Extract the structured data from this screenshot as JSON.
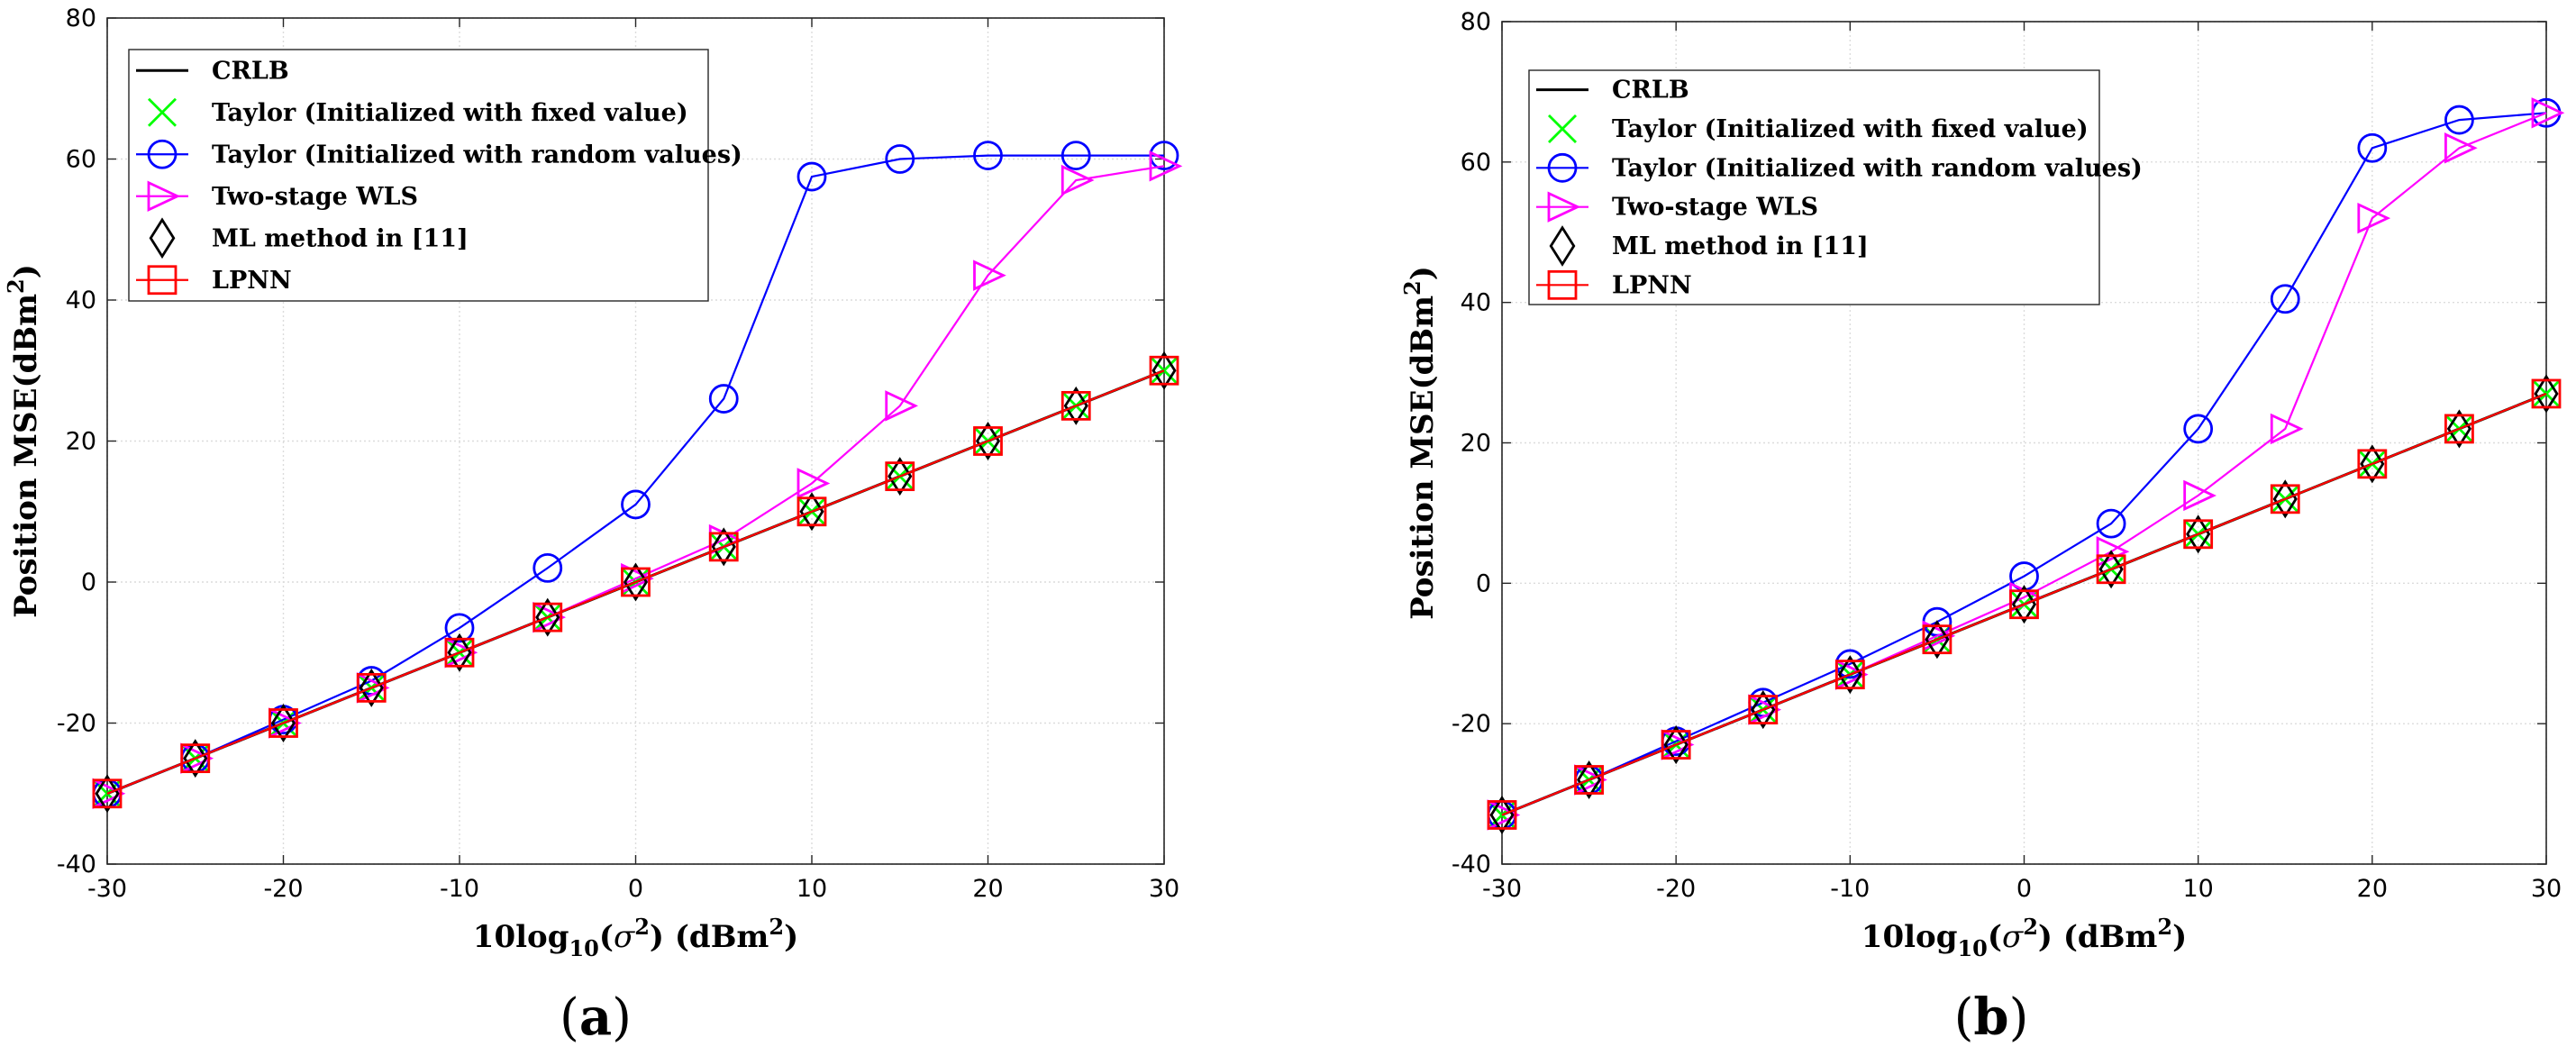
{
  "chart_data": [
    {
      "type": "line",
      "panel_label": "a",
      "xlabel": {
        "pre": "10log",
        "sub": "10",
        "mid": "(",
        "sym": "σ",
        "sup": "2",
        "post": ") (dBm",
        "sup2": "2",
        "end": ")"
      },
      "ylabel": {
        "pre": "Position MSE(dBm",
        "sup": "2",
        "post": ")"
      },
      "xlim": [
        -30,
        30
      ],
      "ylim": [
        -40,
        80
      ],
      "xticks": [
        -30,
        -20,
        -10,
        0,
        10,
        20,
        30
      ],
      "yticks": [
        -40,
        -20,
        0,
        20,
        40,
        60,
        80
      ],
      "grid": true,
      "legend_position": "top-left",
      "x": [
        -30,
        -25,
        -20,
        -15,
        -10,
        -5,
        0,
        5,
        10,
        15,
        20,
        25,
        30
      ],
      "series": [
        {
          "name": "CRLB",
          "color": "#000000",
          "marker": "none",
          "values": [
            -30,
            -25,
            -20,
            -15,
            -10,
            -5,
            0,
            5,
            10,
            15,
            20,
            25,
            30
          ]
        },
        {
          "name": "Taylor (Initialized with fixed value)",
          "color": "#00ff00",
          "marker": "x",
          "values": [
            -30,
            -25,
            -20,
            -15,
            -10,
            -5,
            0,
            5,
            10,
            15,
            20,
            25,
            30
          ]
        },
        {
          "name": "Taylor (Initialized with random values)",
          "color": "#0000ff",
          "marker": "circle",
          "values": [
            -30,
            -25,
            -19.5,
            -14,
            -6.5,
            2,
            11,
            26,
            57.5,
            60,
            60.5,
            60.5,
            60.5
          ]
        },
        {
          "name": "Two-stage WLS",
          "color": "#ff00ff",
          "marker": "triangle-right",
          "values": [
            -30,
            -25,
            -20,
            -15,
            -10,
            -5,
            0.5,
            6,
            14,
            25,
            43.5,
            57,
            59
          ]
        },
        {
          "name": "ML method in [11]",
          "color": "#000000",
          "marker": "diamond",
          "values": [
            -30,
            -25,
            -20,
            -15,
            -10,
            -5,
            0,
            5,
            10,
            15,
            20,
            25,
            30
          ]
        },
        {
          "name": "LPNN",
          "color": "#ff0000",
          "marker": "square",
          "values": [
            -30,
            -25,
            -20,
            -15,
            -10,
            -5,
            0,
            5,
            10,
            15,
            20,
            25,
            30
          ]
        }
      ]
    },
    {
      "type": "line",
      "panel_label": "b",
      "xlabel": {
        "pre": "10log",
        "sub": "10",
        "mid": "(",
        "sym": "σ",
        "sup": "2",
        "post": ") (dBm",
        "sup2": "2",
        "end": ")"
      },
      "ylabel": {
        "pre": "Position MSE(dBm",
        "sup": "2",
        "post": ")"
      },
      "xlim": [
        -30,
        30
      ],
      "ylim": [
        -40,
        80
      ],
      "xticks": [
        -30,
        -20,
        -10,
        0,
        10,
        20,
        30
      ],
      "yticks": [
        -40,
        -20,
        0,
        20,
        40,
        60,
        80
      ],
      "grid": true,
      "legend_position": "top-left",
      "x": [
        -30,
        -25,
        -20,
        -15,
        -10,
        -5,
        0,
        5,
        10,
        15,
        20,
        25,
        30
      ],
      "series": [
        {
          "name": "CRLB",
          "color": "#000000",
          "marker": "none",
          "values": [
            -33,
            -28,
            -23,
            -18,
            -13,
            -8,
            -3,
            2,
            7,
            12,
            17,
            22,
            27
          ]
        },
        {
          "name": "Taylor (Initialized with fixed value)",
          "color": "#00ff00",
          "marker": "x",
          "values": [
            -33,
            -28,
            -23,
            -18,
            -13,
            -8,
            -3,
            2,
            7,
            12,
            17,
            22,
            27
          ]
        },
        {
          "name": "Taylor (Initialized with random values)",
          "color": "#0000ff",
          "marker": "circle",
          "values": [
            -33,
            -28,
            -22.5,
            -17,
            -11.5,
            -5.5,
            1,
            8.5,
            22,
            40.5,
            62,
            66,
            67
          ]
        },
        {
          "name": "Two-stage WLS",
          "color": "#ff00ff",
          "marker": "triangle-right",
          "values": [
            -33,
            -28,
            -23,
            -18,
            -13,
            -7.5,
            -2,
            4.5,
            12.5,
            22,
            52,
            62,
            67
          ]
        },
        {
          "name": "ML method in [11]",
          "color": "#000000",
          "marker": "diamond",
          "values": [
            -33,
            -28,
            -23,
            -18,
            -13,
            -8,
            -3,
            2,
            7,
            12,
            17,
            22,
            27
          ]
        },
        {
          "name": "LPNN",
          "color": "#ff0000",
          "marker": "square",
          "values": [
            -33,
            -28,
            -23,
            -18,
            -13,
            -8,
            -3,
            2,
            7,
            12,
            17,
            22,
            27
          ]
        }
      ]
    }
  ]
}
